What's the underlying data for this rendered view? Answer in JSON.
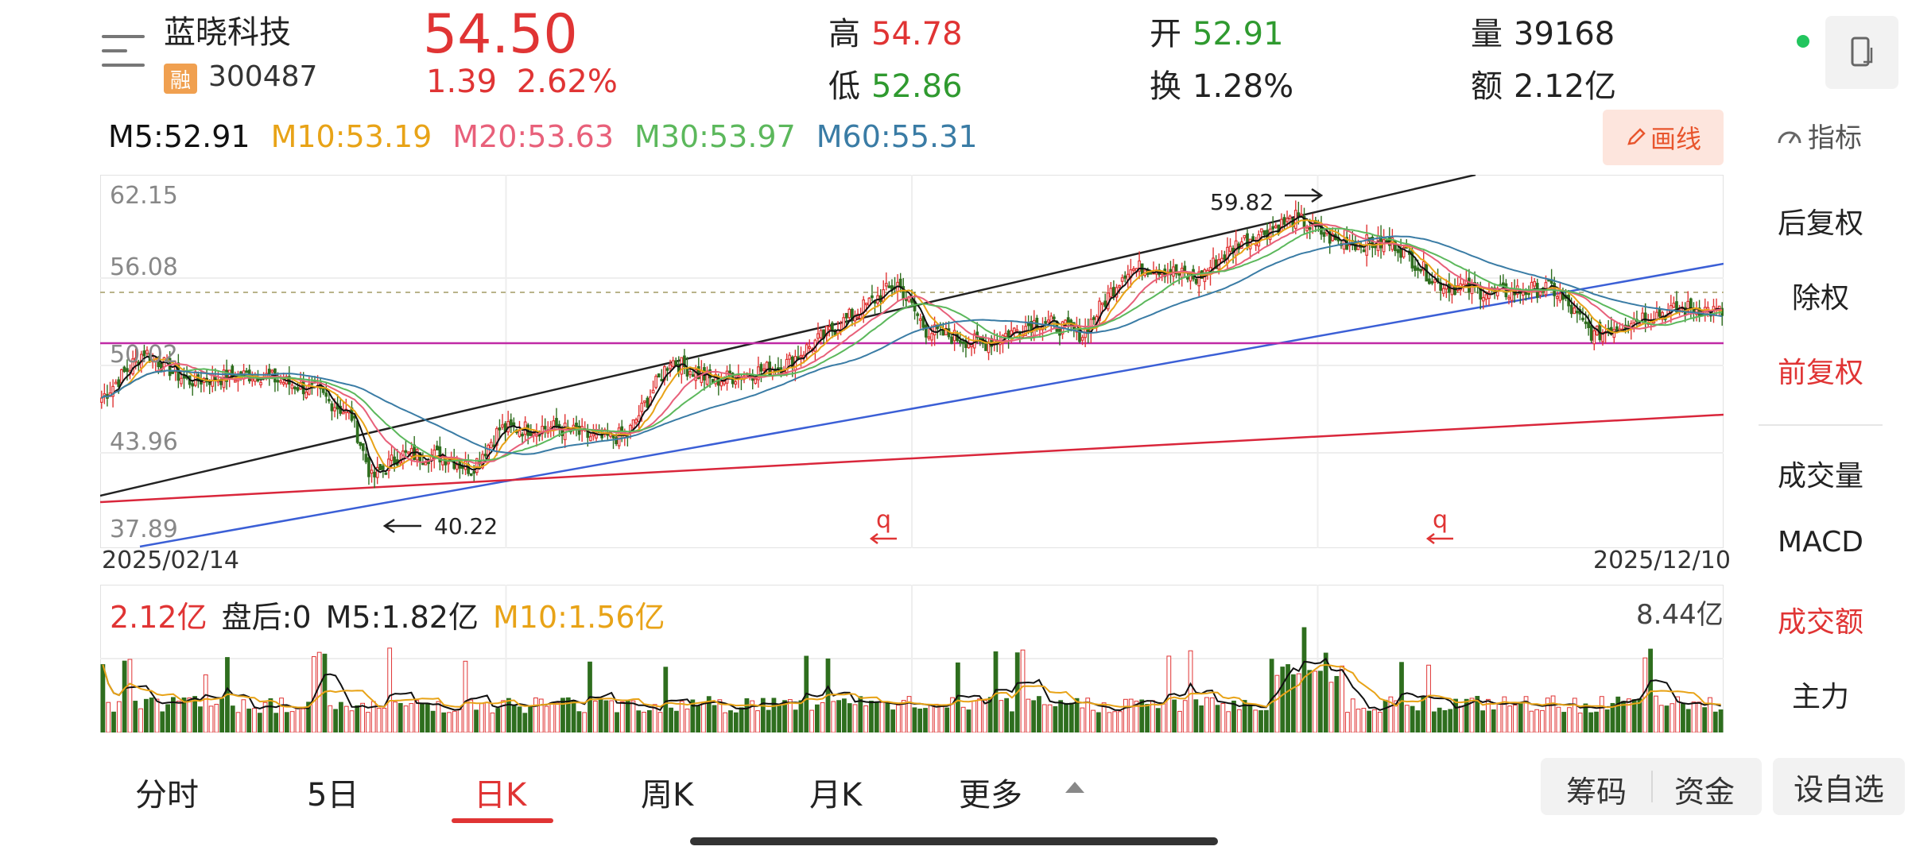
{
  "header": {
    "stock_name": "蓝晓科技",
    "rong_badge": "融",
    "stock_code": "300487",
    "price": "54.50",
    "change": "1.39",
    "change_pct": "2.62%",
    "high_label": "高",
    "high": "54.78",
    "low_label": "低",
    "low": "52.86",
    "open_label": "开",
    "open": "52.91",
    "turnover_label": "换",
    "turnover": "1.28%",
    "volume_label": "量",
    "volume": "39168",
    "amount_label": "额",
    "amount": "2.12亿"
  },
  "ma_legend": [
    {
      "label": "M5:52.91",
      "color": "#111111"
    },
    {
      "label": "M10:53.19",
      "color": "#e8a317"
    },
    {
      "label": "M20:53.63",
      "color": "#e8607a"
    },
    {
      "label": "M30:53.97",
      "color": "#5cb85c"
    },
    {
      "label": "M60:55.31",
      "color": "#3a7ca5"
    }
  ],
  "toolbar": {
    "draw_label": "画线",
    "indicator_label": "指标"
  },
  "side_panel": {
    "items": [
      {
        "label": "后复权",
        "active": false
      },
      {
        "label": "除权",
        "active": false
      },
      {
        "label": "前复权",
        "active": true
      },
      {
        "label": "成交量",
        "active": false
      },
      {
        "label": "MACD",
        "active": false
      },
      {
        "label": "成交额",
        "active": true
      },
      {
        "label": "主力",
        "active": false
      }
    ]
  },
  "chart_data": {
    "type": "candlestick",
    "y_ticks": [
      "62.15",
      "56.08",
      "50.02",
      "43.96",
      "37.89"
    ],
    "ylim": [
      37.89,
      62.15
    ],
    "x_start_label": "2025/02/14",
    "x_end_label": "2025/12/10",
    "annotations": [
      {
        "text": "59.82",
        "note": "high"
      },
      {
        "text": "40.22",
        "note": "low"
      }
    ],
    "markers": [
      "q",
      "q"
    ],
    "colors": {
      "up": "#e03434",
      "down": "#2e6e1e",
      "ma60": "#3a7ca5"
    }
  },
  "volume_panel": {
    "amount_label": "2.12亿",
    "after_hours": "盘后:0",
    "m5_label": "M5:1.82亿",
    "m10_label": "M10:1.56亿",
    "max_label": "8.44亿"
  },
  "tabs": [
    {
      "label": "分时",
      "active": false
    },
    {
      "label": "5日",
      "active": false
    },
    {
      "label": "日K",
      "active": true
    },
    {
      "label": "周K",
      "active": false
    },
    {
      "label": "月K",
      "active": false
    },
    {
      "label": "更多",
      "active": false
    }
  ],
  "bottom_buttons": {
    "chip": "筹码",
    "fund": "资金",
    "watchlist": "设自选"
  },
  "icons": {
    "menu": "menu-icon",
    "phone": "phone-icon",
    "pencil": "pencil-icon",
    "gauge": "gauge-icon",
    "arrow_up": "caret-up-icon"
  }
}
